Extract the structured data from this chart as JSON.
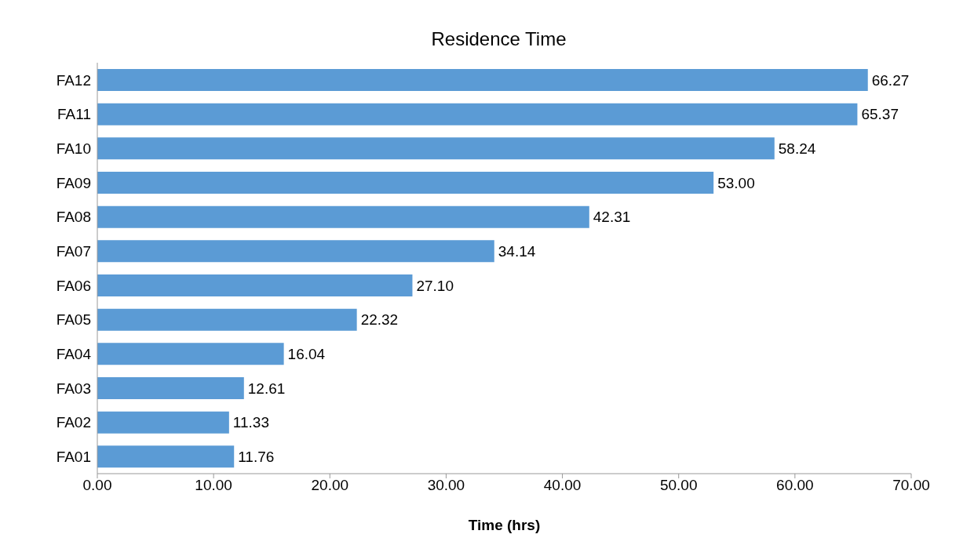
{
  "chart_data": {
    "type": "bar",
    "orientation": "horizontal",
    "title": "Residence Time",
    "xlabel": "Time (hrs)",
    "categories": [
      "FA12",
      "FA11",
      "FA10",
      "FA09",
      "FA08",
      "FA07",
      "FA06",
      "FA05",
      "FA04",
      "FA03",
      "FA02",
      "FA01"
    ],
    "values": [
      66.27,
      65.37,
      58.24,
      53.0,
      42.31,
      34.14,
      27.1,
      22.32,
      16.04,
      12.61,
      11.33,
      11.76
    ],
    "value_labels": [
      "66.27",
      "65.37",
      "58.24",
      "53.00",
      "42.31",
      "34.14",
      "27.10",
      "22.32",
      "16.04",
      "12.61",
      "11.33",
      "11.76"
    ],
    "color": "#5b9bd5",
    "xlim": [
      0,
      70
    ],
    "xticks": [
      {
        "value": 0,
        "label": "0.00"
      },
      {
        "value": 10,
        "label": "10.00"
      },
      {
        "value": 20,
        "label": "20.00"
      },
      {
        "value": 30,
        "label": "30.00"
      },
      {
        "value": 40,
        "label": "40.00"
      },
      {
        "value": 50,
        "label": "50.00"
      },
      {
        "value": 60,
        "label": "60.00"
      },
      {
        "value": 70,
        "label": "70.00"
      }
    ]
  }
}
